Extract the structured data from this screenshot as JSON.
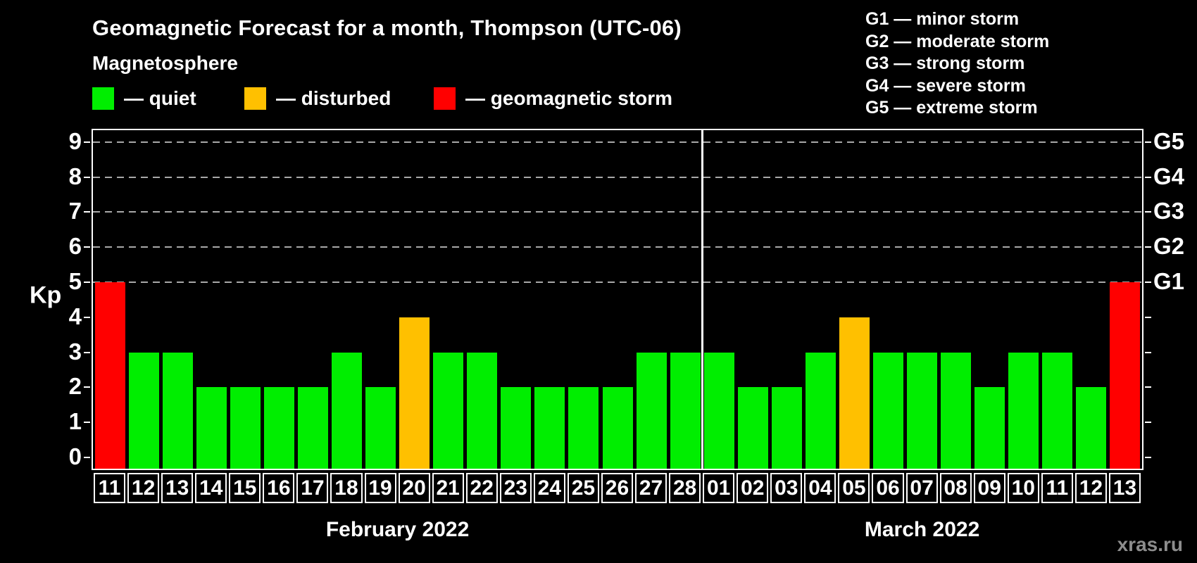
{
  "title": "Geomagnetic Forecast for a month, Thompson (UTC-06)",
  "subtitle": "Magnetosphere",
  "legend": {
    "items": [
      {
        "label": "— quiet",
        "color": "#00ee00"
      },
      {
        "label": "— disturbed",
        "color": "#ffc000"
      },
      {
        "label": "— geomagnetic storm",
        "color": "#ff0000"
      }
    ]
  },
  "storm_legend": {
    "lines": [
      "G1 — minor storm",
      "G2 — moderate storm",
      "G3 — strong storm",
      "G4 — severe storm",
      "G5 — extreme storm"
    ]
  },
  "watermark": "xras.ru",
  "chart_data": {
    "type": "bar",
    "ylabel": "Kp",
    "ylim": [
      0,
      9
    ],
    "yticks": [
      0,
      1,
      2,
      3,
      4,
      5,
      6,
      7,
      8,
      9
    ],
    "gridlines_at": [
      5,
      6,
      7,
      8,
      9
    ],
    "grid": "dashed horizontal at storm levels only",
    "right_axis_labels": [
      {
        "value": 5,
        "label": "G1"
      },
      {
        "value": 6,
        "label": "G2"
      },
      {
        "value": 7,
        "label": "G3"
      },
      {
        "value": 8,
        "label": "G4"
      },
      {
        "value": 9,
        "label": "G5"
      }
    ],
    "status_colors": {
      "quiet": "#00ee00",
      "disturbed": "#ffc000",
      "storm": "#ff0000"
    },
    "months": [
      {
        "label": "February 2022",
        "bars": [
          {
            "day": "11",
            "kp": 5,
            "status": "storm"
          },
          {
            "day": "12",
            "kp": 3,
            "status": "quiet"
          },
          {
            "day": "13",
            "kp": 3,
            "status": "quiet"
          },
          {
            "day": "14",
            "kp": 2,
            "status": "quiet"
          },
          {
            "day": "15",
            "kp": 2,
            "status": "quiet"
          },
          {
            "day": "16",
            "kp": 2,
            "status": "quiet"
          },
          {
            "day": "17",
            "kp": 2,
            "status": "quiet"
          },
          {
            "day": "18",
            "kp": 3,
            "status": "quiet"
          },
          {
            "day": "19",
            "kp": 2,
            "status": "quiet"
          },
          {
            "day": "20",
            "kp": 4,
            "status": "disturbed"
          },
          {
            "day": "21",
            "kp": 3,
            "status": "quiet"
          },
          {
            "day": "22",
            "kp": 3,
            "status": "quiet"
          },
          {
            "day": "23",
            "kp": 2,
            "status": "quiet"
          },
          {
            "day": "24",
            "kp": 2,
            "status": "quiet"
          },
          {
            "day": "25",
            "kp": 2,
            "status": "quiet"
          },
          {
            "day": "26",
            "kp": 2,
            "status": "quiet"
          },
          {
            "day": "27",
            "kp": 3,
            "status": "quiet"
          },
          {
            "day": "28",
            "kp": 3,
            "status": "quiet"
          }
        ]
      },
      {
        "label": "March 2022",
        "bars": [
          {
            "day": "01",
            "kp": 3,
            "status": "quiet"
          },
          {
            "day": "02",
            "kp": 2,
            "status": "quiet"
          },
          {
            "day": "03",
            "kp": 2,
            "status": "quiet"
          },
          {
            "day": "04",
            "kp": 3,
            "status": "quiet"
          },
          {
            "day": "05",
            "kp": 4,
            "status": "disturbed"
          },
          {
            "day": "06",
            "kp": 3,
            "status": "quiet"
          },
          {
            "day": "07",
            "kp": 3,
            "status": "quiet"
          },
          {
            "day": "08",
            "kp": 3,
            "status": "quiet"
          },
          {
            "day": "09",
            "kp": 2,
            "status": "quiet"
          },
          {
            "day": "10",
            "kp": 3,
            "status": "quiet"
          },
          {
            "day": "11",
            "kp": 3,
            "status": "quiet"
          },
          {
            "day": "12",
            "kp": 2,
            "status": "quiet"
          },
          {
            "day": "13",
            "kp": 5,
            "status": "storm"
          }
        ]
      }
    ]
  }
}
